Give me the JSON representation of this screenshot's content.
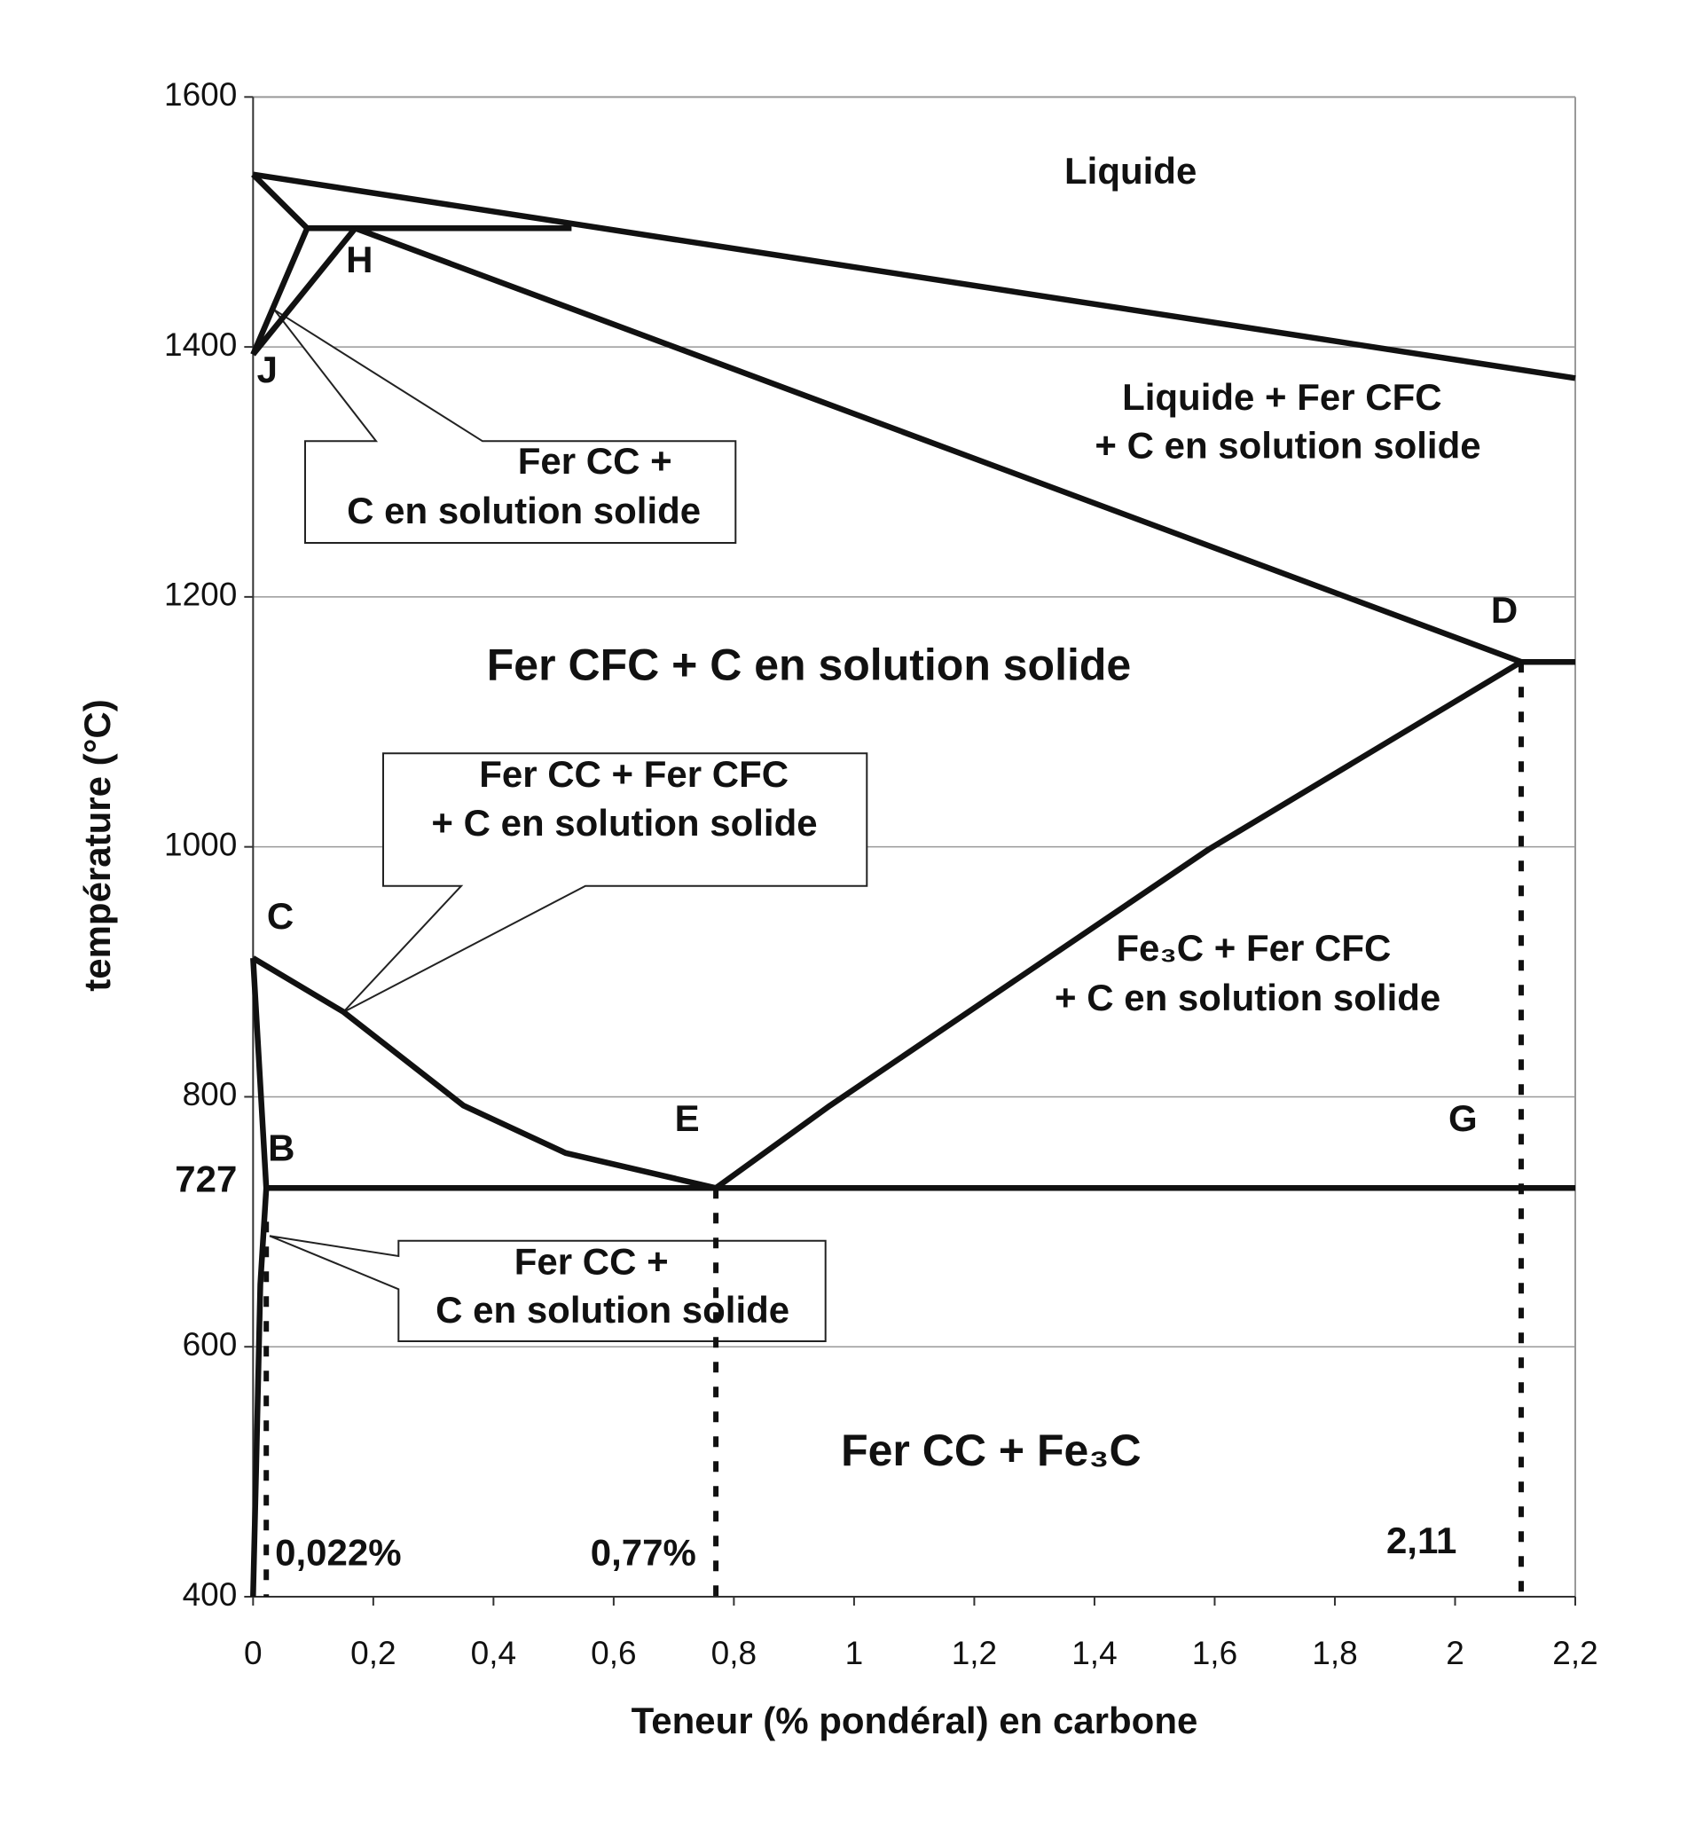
{
  "chart_data": {
    "type": "line",
    "x_label": "Teneur (% pondéral) en carbone",
    "y_label": "température (°C)",
    "xlim": [
      0,
      2.2
    ],
    "ylim": [
      400,
      1600
    ],
    "xticks": [
      0,
      {
        "value": 0.2,
        "label": "0,2"
      },
      {
        "value": 0.4,
        "label": "0,4"
      },
      {
        "value": 0.6,
        "label": "0,6"
      },
      {
        "value": 0.8,
        "label": "0,8"
      },
      1,
      {
        "value": 1.2,
        "label": "1,2"
      },
      {
        "value": 1.4,
        "label": "1,4"
      },
      {
        "value": 1.6,
        "label": "1,6"
      },
      {
        "value": 1.8,
        "label": "1,8"
      },
      2,
      {
        "value": 2.2,
        "label": "2,2"
      }
    ],
    "yticks": [
      400,
      600,
      800,
      1000,
      1200,
      1400,
      1600
    ],
    "highlight_ytick": 727,
    "grid": true,
    "color": "#111111",
    "series": [
      {
        "x": [
          0,
          2.2
        ],
        "values": [
          1538,
          1375
        ]
      },
      {
        "x": [
          0,
          0.09,
          0
        ],
        "values": [
          1538,
          1495,
          1394
        ]
      },
      {
        "x": [
          0.09,
          0.53
        ],
        "values": [
          1495,
          1495
        ]
      },
      {
        "x": [
          0,
          0.17
        ],
        "values": [
          1394,
          1495
        ]
      },
      {
        "x": [
          0.17,
          2.11,
          2.2
        ],
        "values": [
          1495,
          1148,
          1148
        ]
      },
      {
        "x": [
          0.77,
          0.96,
          1.59,
          2.11
        ],
        "values": [
          727,
          793,
          998,
          1148
        ]
      },
      {
        "x": [
          0,
          0.15,
          0.35,
          0.52,
          0.77
        ],
        "values": [
          911,
          868,
          793,
          755,
          727
        ]
      },
      {
        "x": [
          0.022,
          2.2
        ],
        "values": [
          727,
          727
        ]
      },
      {
        "x": [
          0,
          0.022,
          0.012,
          0.005,
          0
        ],
        "values": [
          911,
          727,
          650,
          500,
          400
        ]
      },
      {
        "x": [
          0.022,
          0.022
        ],
        "values": [
          700,
          400
        ],
        "dashed": true
      },
      {
        "x": [
          0.77,
          0.77
        ],
        "values": [
          727,
          400
        ],
        "dashed": true
      },
      {
        "x": [
          2.11,
          2.11
        ],
        "values": [
          1148,
          400
        ],
        "dashed": true
      }
    ],
    "annotations": [
      {
        "text": "Liquide"
      },
      {
        "text": "H"
      },
      {
        "text": "J"
      },
      {
        "text": "Fer CC +"
      },
      {
        "text": "C en solution solide"
      },
      {
        "text": "Liquide + Fer CFC"
      },
      {
        "text": "+ C en solution solide"
      },
      {
        "text": "D"
      },
      {
        "text": "Fer CFC + C en solution solide"
      },
      {
        "text": "Fer CC +  Fer CFC"
      },
      {
        "text": "+ C en solution solide"
      },
      {
        "text": "C"
      },
      {
        "text": "Fe₃C + Fer CFC"
      },
      {
        "text": "+ C en solution solide"
      },
      {
        "text": "E"
      },
      {
        "text": "G"
      },
      {
        "text": "B"
      },
      {
        "text": "Fer CC +"
      },
      {
        "text": "C en solution solide"
      },
      {
        "text": "Fer CC + Fe₃C"
      },
      {
        "text": "0,022%"
      },
      {
        "text": "0,77%"
      },
      {
        "text": "2,11"
      }
    ]
  }
}
